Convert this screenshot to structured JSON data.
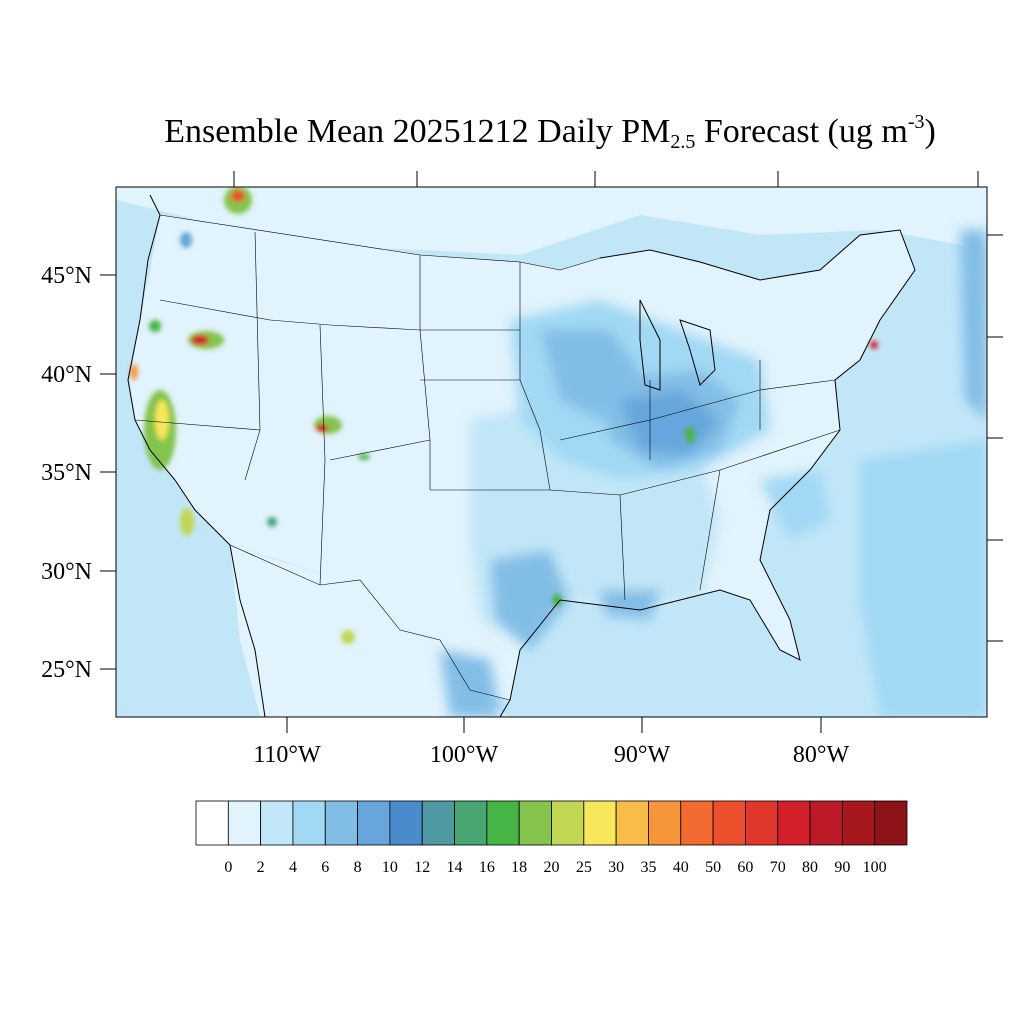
{
  "title": {
    "prefix": "Ensemble Mean 20251212 Daily PM",
    "subscript": "2.5",
    "middle": " Forecast (ug m",
    "superscript": "-3",
    "suffix": ")"
  },
  "map": {
    "region": "Contiguous United States",
    "lat_labels": [
      "45°N",
      "40°N",
      "35°N",
      "30°N",
      "25°N"
    ],
    "lon_labels": [
      "110°W",
      "100°W",
      "90°W",
      "80°W"
    ]
  },
  "colorbar": {
    "labels": [
      "0",
      "2",
      "4",
      "6",
      "8",
      "10",
      "12",
      "14",
      "16",
      "18",
      "20",
      "25",
      "30",
      "35",
      "40",
      "50",
      "60",
      "70",
      "80",
      "90",
      "100"
    ],
    "colors": [
      "#ffffff",
      "#e1f3fc",
      "#c1e6f8",
      "#a1d8f4",
      "#82bde6",
      "#66a6dc",
      "#4a8bcb",
      "#4d9aa2",
      "#47a672",
      "#47b546",
      "#84c44d",
      "#c2d653",
      "#f8e75a",
      "#f9bc49",
      "#f7953b",
      "#f26a2f",
      "#eb4f2c",
      "#e1362b",
      "#d31f2a",
      "#bd1a27",
      "#a6171e",
      "#8e1318"
    ]
  }
}
